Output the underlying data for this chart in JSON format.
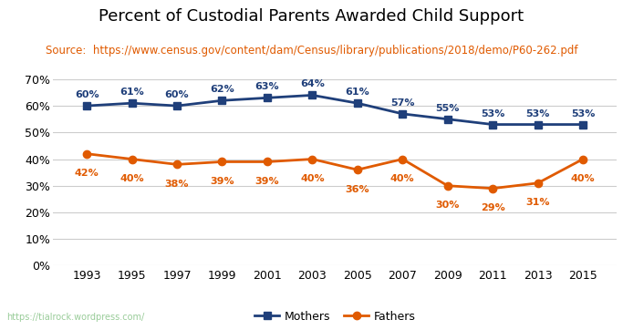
{
  "title": "Percent of Custodial Parents Awarded Child Support",
  "source": "Source:  https://www.census.gov/content/dam/Census/library/publications/2018/demo/P60-262.pdf",
  "watermark": "https://tialrock.wordpress.com/",
  "years": [
    1993,
    1995,
    1997,
    1999,
    2001,
    2003,
    2005,
    2007,
    2009,
    2011,
    2013,
    2015
  ],
  "mothers": [
    60,
    61,
    60,
    62,
    63,
    64,
    61,
    57,
    55,
    53,
    53,
    53
  ],
  "fathers": [
    42,
    40,
    38,
    39,
    39,
    40,
    36,
    40,
    30,
    29,
    31,
    40
  ],
  "mothers_color": "#1f3f7a",
  "fathers_color": "#e05a00",
  "marker_style": "s",
  "marker_style_fathers": "o",
  "line_width": 2.0,
  "marker_size": 6,
  "ylim": [
    0,
    70
  ],
  "yticks": [
    0,
    10,
    20,
    30,
    40,
    50,
    60,
    70
  ],
  "title_fontsize": 13,
  "source_fontsize": 8.5,
  "label_fontsize": 8,
  "tick_fontsize": 9,
  "legend_fontsize": 9,
  "bg_color": "#ffffff",
  "grid_color": "#cccccc",
  "footer_bg": "#3a5940",
  "footer_text_color": "#99cc99"
}
